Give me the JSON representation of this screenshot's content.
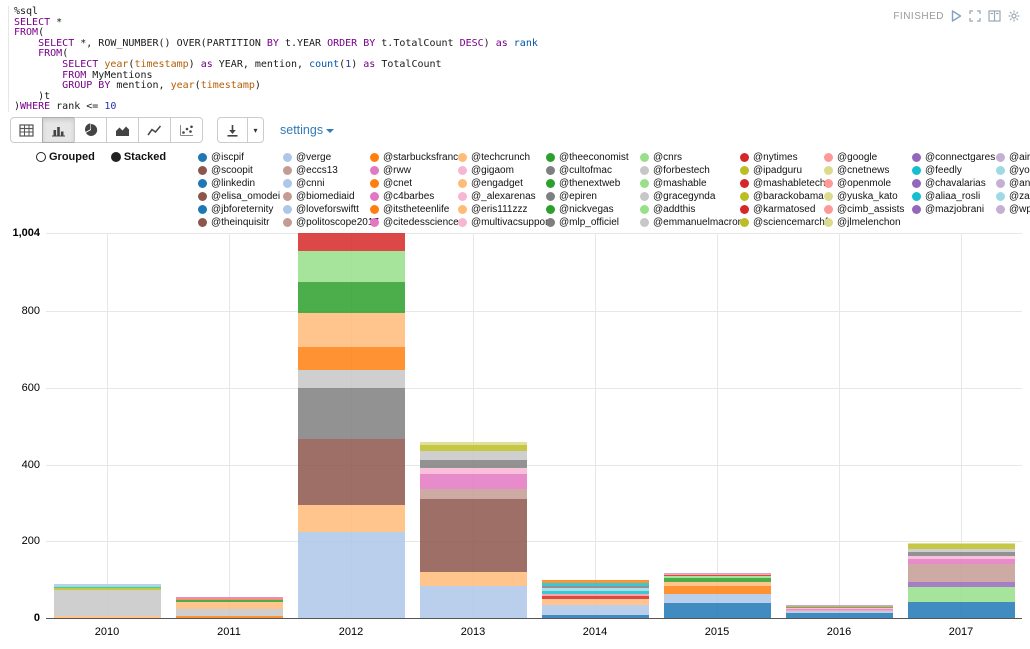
{
  "editor": {
    "status": "FINISHED",
    "code_lines": [
      [
        {
          "c": "p",
          "t": "%sql"
        }
      ],
      [
        {
          "c": "kw",
          "t": "SELECT"
        },
        {
          "c": "p",
          "t": " *"
        }
      ],
      [
        {
          "c": "kw",
          "t": "FROM"
        },
        {
          "c": "p",
          "t": "("
        }
      ],
      [
        {
          "c": "p",
          "t": "    "
        },
        {
          "c": "kw",
          "t": "SELECT"
        },
        {
          "c": "p",
          "t": " *, ROW_NUMBER() OVER(PARTITION "
        },
        {
          "c": "kw",
          "t": "BY"
        },
        {
          "c": "p",
          "t": " t.YEAR "
        },
        {
          "c": "kw",
          "t": "ORDER BY"
        },
        {
          "c": "p",
          "t": " t.TotalCount "
        },
        {
          "c": "kw",
          "t": "DESC"
        },
        {
          "c": "p",
          "t": ") "
        },
        {
          "c": "kw",
          "t": "as"
        },
        {
          "c": "p",
          "t": " "
        },
        {
          "c": "var",
          "t": "rank"
        }
      ],
      [
        {
          "c": "p",
          "t": "    "
        },
        {
          "c": "kw",
          "t": "FROM"
        },
        {
          "c": "p",
          "t": "("
        }
      ],
      [
        {
          "c": "p",
          "t": "        "
        },
        {
          "c": "kw",
          "t": "SELECT"
        },
        {
          "c": "p",
          "t": " "
        },
        {
          "c": "fn",
          "t": "year"
        },
        {
          "c": "p",
          "t": "("
        },
        {
          "c": "fn",
          "t": "timestamp"
        },
        {
          "c": "p",
          "t": ") "
        },
        {
          "c": "kw",
          "t": "as"
        },
        {
          "c": "p",
          "t": " YEAR, mention, "
        },
        {
          "c": "var",
          "t": "count"
        },
        {
          "c": "p",
          "t": "("
        },
        {
          "c": "num",
          "t": "1"
        },
        {
          "c": "p",
          "t": ") "
        },
        {
          "c": "kw",
          "t": "as"
        },
        {
          "c": "p",
          "t": " TotalCount"
        }
      ],
      [
        {
          "c": "p",
          "t": "        "
        },
        {
          "c": "kw",
          "t": "FROM"
        },
        {
          "c": "p",
          "t": " MyMentions"
        }
      ],
      [
        {
          "c": "p",
          "t": "        "
        },
        {
          "c": "kw",
          "t": "GROUP BY"
        },
        {
          "c": "p",
          "t": " mention, "
        },
        {
          "c": "fn",
          "t": "year"
        },
        {
          "c": "p",
          "t": "("
        },
        {
          "c": "fn",
          "t": "timestamp"
        },
        {
          "c": "p",
          "t": ")"
        }
      ],
      [
        {
          "c": "p",
          "t": "    )t"
        }
      ],
      [
        {
          "c": "p",
          "t": ")"
        },
        {
          "c": "kw",
          "t": "WHERE"
        },
        {
          "c": "p",
          "t": " rank <= "
        },
        {
          "c": "num",
          "t": "10"
        }
      ]
    ]
  },
  "toolbar": {
    "chart_buttons": [
      {
        "icon": "table-icon",
        "active": false
      },
      {
        "icon": "bar-chart-icon",
        "active": true
      },
      {
        "icon": "pie-chart-icon",
        "active": false
      },
      {
        "icon": "area-chart-icon",
        "active": false
      },
      {
        "icon": "line-chart-icon",
        "active": false
      },
      {
        "icon": "scatter-chart-icon",
        "active": false
      }
    ],
    "settings_label": "settings"
  },
  "controls": {
    "grouped_label": "Grouped",
    "stacked_label": "Stacked",
    "selected": "Stacked"
  },
  "legend": {
    "items": [
      {
        "label": "@iscpif",
        "color": "#1f77b4"
      },
      {
        "label": "@verge",
        "color": "#aec7e8"
      },
      {
        "label": "@starbucksfrance",
        "color": "#ff7f0e"
      },
      {
        "label": "@techcrunch",
        "color": "#ffbb78"
      },
      {
        "label": "@theeconomist",
        "color": "#2ca02c"
      },
      {
        "label": "@cnrs",
        "color": "#98df8a"
      },
      {
        "label": "@nytimes",
        "color": "#d62728"
      },
      {
        "label": "@google",
        "color": "#ff9896"
      },
      {
        "label": "@connectgares",
        "color": "#9467bd"
      },
      {
        "label": "@airbnb",
        "color": "#c5b0d5"
      },
      {
        "label": "@scoopit",
        "color": "#8c564b"
      },
      {
        "label": "@eccs13",
        "color": "#c49c94"
      },
      {
        "label": "@rww",
        "color": "#e377c2"
      },
      {
        "label": "@gigaom",
        "color": "#f7b6d2"
      },
      {
        "label": "@cultofmac",
        "color": "#7f7f7f"
      },
      {
        "label": "@forbestech",
        "color": "#c7c7c7"
      },
      {
        "label": "@ipadguru",
        "color": "#bcbd22"
      },
      {
        "label": "@cnetnews",
        "color": "#dbdb8d"
      },
      {
        "label": "@feedly",
        "color": "#17becf"
      },
      {
        "label": "@youtube",
        "color": "#9edae5"
      },
      {
        "label": "@linkedin",
        "color": "#1f77b4"
      },
      {
        "label": "@cnni",
        "color": "#aec7e8"
      },
      {
        "label": "@cnet",
        "color": "#ff7f0e"
      },
      {
        "label": "@engadget",
        "color": "#ffbb78"
      },
      {
        "label": "@thenextweb",
        "color": "#2ca02c"
      },
      {
        "label": "@mashable",
        "color": "#98df8a"
      },
      {
        "label": "@mashabletech",
        "color": "#d62728"
      },
      {
        "label": "@openmole",
        "color": "#ff9896"
      },
      {
        "label": "@chavalarias",
        "color": "#9467bd"
      },
      {
        "label": "@anne_hidalgo",
        "color": "#c5b0d5"
      },
      {
        "label": "@elisa_omodei",
        "color": "#8c564b"
      },
      {
        "label": "@biomediaid",
        "color": "#c49c94"
      },
      {
        "label": "@c4barbes",
        "color": "#e377c2"
      },
      {
        "label": "@_alexarenas",
        "color": "#f7b6d2"
      },
      {
        "label": "@epiren",
        "color": "#7f7f7f"
      },
      {
        "label": "@gracegynda",
        "color": "#c7c7c7"
      },
      {
        "label": "@barackobama",
        "color": "#bcbd22"
      },
      {
        "label": "@yuska_kato",
        "color": "#dbdb8d"
      },
      {
        "label": "@aliaa_rosli",
        "color": "#17becf"
      },
      {
        "label": "@zaradevlin",
        "color": "#9edae5"
      },
      {
        "label": "@jbforeternity",
        "color": "#1f77b4"
      },
      {
        "label": "@loveforswiftt",
        "color": "#aec7e8"
      },
      {
        "label": "@itstheteenlife",
        "color": "#ff7f0e"
      },
      {
        "label": "@eris111zzz",
        "color": "#ffbb78"
      },
      {
        "label": "@nickvegas",
        "color": "#2ca02c"
      },
      {
        "label": "@addthis",
        "color": "#98df8a"
      },
      {
        "label": "@karmatosed",
        "color": "#d62728"
      },
      {
        "label": "@cimb_assists",
        "color": "#ff9896"
      },
      {
        "label": "@mazjobrani",
        "color": "#9467bd"
      },
      {
        "label": "@wpmuorg",
        "color": "#c5b0d5"
      },
      {
        "label": "@theinquisitr",
        "color": "#8c564b"
      },
      {
        "label": "@politoscope2017",
        "color": "#c49c94"
      },
      {
        "label": "@citedessciences",
        "color": "#e377c2"
      },
      {
        "label": "@multivacsupport",
        "color": "#f7b6d2"
      },
      {
        "label": "@mlp_officiel",
        "color": "#7f7f7f"
      },
      {
        "label": "@emmanuelmacron",
        "color": "#c7c7c7"
      },
      {
        "label": "@sciencemarchfr",
        "color": "#bcbd22"
      },
      {
        "label": "@jlmelenchon",
        "color": "#dbdb8d"
      }
    ]
  },
  "chart_data": {
    "type": "bar",
    "mode": "stacked",
    "x_categories": [
      "2010",
      "2011",
      "2012",
      "2013",
      "2014",
      "2015",
      "2016",
      "2017"
    ],
    "y_tick_values": [
      0,
      200,
      400,
      600,
      800,
      1004
    ],
    "y_tick_labels": [
      "0",
      "200",
      "400",
      "600",
      "800",
      "1,004"
    ],
    "ylim": [
      0,
      1004
    ],
    "grid": true,
    "legend_position": "top",
    "totals": {
      "2010": 88,
      "2011": 54,
      "2012": 1004,
      "2013": 460,
      "2014": 98,
      "2015": 118,
      "2016": 34,
      "2017": 195
    },
    "stacks": {
      "2010": [
        {
          "mention": "@techcrunch",
          "value": 6
        },
        {
          "mention": "@forbestech",
          "value": 66
        },
        {
          "mention": "@ipadguru",
          "value": 5
        },
        {
          "mention": "@feedly",
          "value": 3
        },
        {
          "mention": "@mashable",
          "value": 4
        },
        {
          "mention": "@loveforswiftt",
          "value": 4
        }
      ],
      "2011": [
        {
          "mention": "@starbucksfrance",
          "value": 6
        },
        {
          "mention": "@forbestech",
          "value": 17
        },
        {
          "mention": "@engadget",
          "value": 19
        },
        {
          "mention": "@thenextweb",
          "value": 5
        },
        {
          "mention": "@itstheteenlife",
          "value": 3
        },
        {
          "mention": "@citedessciences",
          "value": 4
        }
      ],
      "2012": [
        {
          "mention": "@verge",
          "value": 225
        },
        {
          "mention": "@techcrunch",
          "value": 70
        },
        {
          "mention": "@scoopit",
          "value": 173
        },
        {
          "mention": "@cultofmac",
          "value": 133
        },
        {
          "mention": "@forbestech",
          "value": 47
        },
        {
          "mention": "@cnet",
          "value": 60
        },
        {
          "mention": "@engadget",
          "value": 87
        },
        {
          "mention": "@thenextweb",
          "value": 82
        },
        {
          "mention": "@mashable",
          "value": 81
        },
        {
          "mention": "@mashabletech",
          "value": 46
        }
      ],
      "2013": [
        {
          "mention": "@verge",
          "value": 84
        },
        {
          "mention": "@techcrunch",
          "value": 36
        },
        {
          "mention": "@scoopit",
          "value": 190
        },
        {
          "mention": "@eccs13",
          "value": 26
        },
        {
          "mention": "@rww",
          "value": 39
        },
        {
          "mention": "@gigaom",
          "value": 16
        },
        {
          "mention": "@cultofmac",
          "value": 20
        },
        {
          "mention": "@forbestech",
          "value": 25
        },
        {
          "mention": "@ipadguru",
          "value": 15
        },
        {
          "mention": "@cnetnews",
          "value": 9
        }
      ],
      "2014": [
        {
          "mention": "@iscpif",
          "value": 8
        },
        {
          "mention": "@verge",
          "value": 25
        },
        {
          "mention": "@techcrunch",
          "value": 16
        },
        {
          "mention": "@nytimes",
          "value": 8
        },
        {
          "mention": "@google",
          "value": 6
        },
        {
          "mention": "@feedly",
          "value": 8
        },
        {
          "mention": "@youtube",
          "value": 8
        },
        {
          "mention": "@epiren",
          "value": 5
        },
        {
          "mention": "@aliaa_rosli",
          "value": 8
        },
        {
          "mention": "@itstheteenlife",
          "value": 6
        }
      ],
      "2015": [
        {
          "mention": "@iscpif",
          "value": 39
        },
        {
          "mention": "@verge",
          "value": 24
        },
        {
          "mention": "@starbucksfrance",
          "value": 21
        },
        {
          "mention": "@techcrunch",
          "value": 10
        },
        {
          "mention": "@theeconomist",
          "value": 10
        },
        {
          "mention": "@cnrs",
          "value": 5
        },
        {
          "mention": "@nytimes",
          "value": 3
        },
        {
          "mention": "@google",
          "value": 3
        },
        {
          "mention": "@connectgares",
          "value": 2
        },
        {
          "mention": "@airbnb",
          "value": 1
        }
      ],
      "2016": [
        {
          "mention": "@iscpif",
          "value": 13
        },
        {
          "mention": "@verge",
          "value": 4
        },
        {
          "mention": "@google",
          "value": 3
        },
        {
          "mention": "@c4barbes",
          "value": 4
        },
        {
          "mention": "@_alexarenas",
          "value": 3
        },
        {
          "mention": "@epiren",
          "value": 2
        },
        {
          "mention": "@gracegynda",
          "value": 2
        },
        {
          "mention": "@barackobama",
          "value": 1
        },
        {
          "mention": "@mazjobrani",
          "value": 1
        },
        {
          "mention": "@wpmuorg",
          "value": 1
        }
      ],
      "2017": [
        {
          "mention": "@iscpif",
          "value": 41
        },
        {
          "mention": "@cnrs",
          "value": 39
        },
        {
          "mention": "@chavalarias",
          "value": 13
        },
        {
          "mention": "@politoscope2017",
          "value": 48
        },
        {
          "mention": "@citedessciences",
          "value": 13
        },
        {
          "mention": "@multivacsupport",
          "value": 7
        },
        {
          "mention": "@mlp_officiel",
          "value": 10
        },
        {
          "mention": "@emmanuelmacron",
          "value": 10
        },
        {
          "mention": "@sciencemarchfr",
          "value": 11
        },
        {
          "mention": "@jlmelenchon",
          "value": 3
        }
      ]
    }
  }
}
